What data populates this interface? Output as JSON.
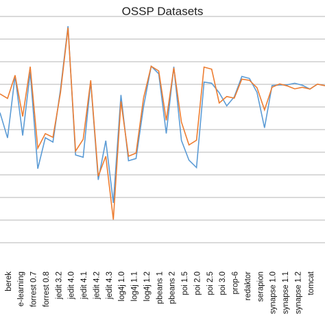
{
  "chart_data": {
    "type": "line",
    "title": "OSSP Datasets",
    "xlabel": "",
    "ylabel": "",
    "categories": [
      "berek",
      "e-learning",
      "forrest 0.7",
      "forrest 0.8",
      "jedit 3.2",
      "jedit 4.0",
      "jedit 4.1",
      "jedit 4.2",
      "jedit 4.3",
      "log4j 1.0",
      "log4j 1.1",
      "log4j 1.2",
      "pbeans 1",
      "pbeans 2",
      "poi 1.5",
      "poi 2.0",
      "poi 2.5",
      "poi 3.0",
      "prop-6",
      "redaktor",
      "serapion",
      "synapse 1.0",
      "synapse 1.1",
      "synapse 1.2",
      "tomcat"
    ],
    "x": [
      -1.2,
      -0.6,
      0,
      0.6,
      1.2,
      1.8,
      2.4,
      3.0,
      3.6,
      4.2,
      4.8,
      5.4,
      6.0,
      6.6,
      7.2,
      7.8,
      8.4,
      9.0,
      9.6,
      10.2,
      10.8,
      11.4,
      12.0,
      12.6,
      13.2,
      13.8,
      14.4,
      15.0,
      15.6,
      16.2,
      16.8,
      17.4,
      18.0,
      18.6,
      19.2,
      19.8,
      20.4,
      21.0,
      21.6,
      22.2,
      22.8,
      23.4,
      24.0,
      24.6
    ],
    "series": [
      {
        "color": "#5b9bd5",
        "values": [
          0.575,
          0.463,
          0.738,
          0.474,
          0.754,
          0.327,
          0.464,
          0.445,
          0.677,
          0.957,
          0.388,
          0.378,
          0.712,
          0.278,
          0.451,
          0.176,
          0.653,
          0.362,
          0.372,
          0.602,
          0.78,
          0.747,
          0.483,
          0.778,
          0.452,
          0.365,
          0.332,
          0.71,
          0.705,
          0.663,
          0.605,
          0.645,
          0.735,
          0.726,
          0.665,
          0.508,
          0.695,
          0.697,
          0.698,
          0.705,
          0.696,
          0.679,
          0.701,
          0.694
        ]
      },
      {
        "color": "#ed7d31",
        "values": [
          0.658,
          0.638,
          0.74,
          0.558,
          0.778,
          0.418,
          0.482,
          0.466,
          0.663,
          0.95,
          0.405,
          0.457,
          0.718,
          0.294,
          0.382,
          0.102,
          0.625,
          0.382,
          0.396,
          0.64,
          0.78,
          0.759,
          0.541,
          0.773,
          0.533,
          0.432,
          0.453,
          0.776,
          0.767,
          0.618,
          0.646,
          0.639,
          0.723,
          0.718,
          0.685,
          0.587,
          0.687,
          0.702,
          0.693,
          0.68,
          0.687,
          0.679,
          0.701,
          0.694
        ]
      }
    ],
    "xlim": [
      -1.2,
      24.6
    ],
    "ylim": [
      -0.1,
      1.0
    ],
    "grid": true,
    "legend": "none"
  }
}
